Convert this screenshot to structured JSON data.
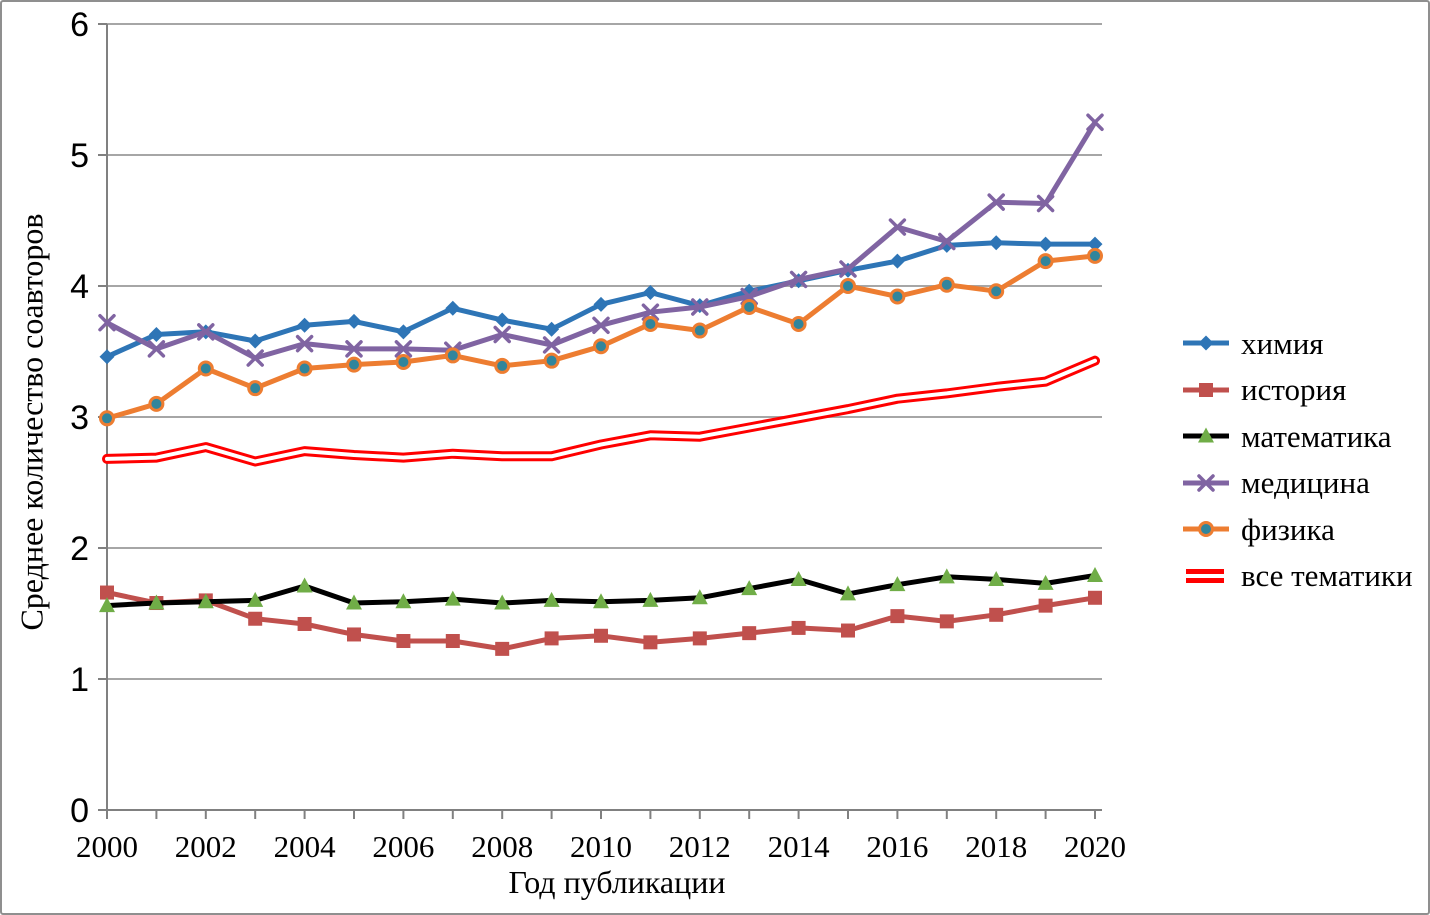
{
  "chart_data": {
    "type": "line",
    "title": "",
    "xlabel": "Год публикации",
    "ylabel": "Среднее количество соавторов",
    "x": [
      2000,
      2001,
      2002,
      2003,
      2004,
      2005,
      2006,
      2007,
      2008,
      2009,
      2010,
      2011,
      2012,
      2013,
      2014,
      2015,
      2016,
      2017,
      2018,
      2019,
      2020
    ],
    "x_tick_labels": [
      "2000",
      "2002",
      "2004",
      "2006",
      "2008",
      "2010",
      "2012",
      "2014",
      "2016",
      "2018",
      "2020"
    ],
    "y_ticks": [
      0,
      1,
      2,
      3,
      4,
      5,
      6
    ],
    "y_tick_labels": [
      "0",
      "1",
      "2",
      "3",
      "4",
      "5",
      "6"
    ],
    "xlim": [
      2000,
      2020
    ],
    "ylim": [
      0,
      6
    ],
    "grid": "horizontal",
    "grid_color": "#A6A6A6",
    "axis_color": "#808080",
    "legend_position": "right",
    "series": [
      {
        "id": "chemistry",
        "name": "химия",
        "color": "#2E75B6",
        "marker": "diamond",
        "values": [
          3.46,
          3.63,
          3.65,
          3.58,
          3.7,
          3.73,
          3.65,
          3.83,
          3.74,
          3.67,
          3.86,
          3.95,
          3.85,
          3.96,
          4.04,
          4.12,
          4.19,
          4.31,
          4.33,
          4.32,
          4.32
        ]
      },
      {
        "id": "history",
        "name": "история",
        "color": "#C0504D",
        "marker": "square",
        "values": [
          1.66,
          1.58,
          1.6,
          1.46,
          1.42,
          1.34,
          1.29,
          1.29,
          1.23,
          1.31,
          1.33,
          1.28,
          1.31,
          1.35,
          1.39,
          1.37,
          1.48,
          1.44,
          1.49,
          1.56,
          1.62
        ]
      },
      {
        "id": "mathematics",
        "name": "математика",
        "color": "#000000",
        "marker": "triangle",
        "marker_color": "#70AD47",
        "values": [
          1.56,
          1.58,
          1.59,
          1.6,
          1.71,
          1.58,
          1.59,
          1.61,
          1.58,
          1.6,
          1.59,
          1.6,
          1.62,
          1.69,
          1.76,
          1.65,
          1.72,
          1.78,
          1.76,
          1.73,
          1.79
        ]
      },
      {
        "id": "medicine",
        "name": "медицина",
        "color": "#8064A2",
        "marker": "x",
        "values": [
          3.72,
          3.52,
          3.65,
          3.45,
          3.56,
          3.52,
          3.52,
          3.51,
          3.63,
          3.55,
          3.7,
          3.8,
          3.84,
          3.92,
          4.05,
          4.13,
          4.45,
          4.34,
          4.64,
          4.63,
          5.25
        ]
      },
      {
        "id": "physics",
        "name": "физика",
        "color": "#ED7D31",
        "marker": "circle",
        "marker_color": "#31859C",
        "values": [
          2.99,
          3.1,
          3.37,
          3.22,
          3.37,
          3.4,
          3.42,
          3.47,
          3.39,
          3.43,
          3.54,
          3.71,
          3.66,
          3.84,
          3.71,
          4.0,
          3.92,
          4.01,
          3.96,
          4.19,
          4.23
        ]
      },
      {
        "id": "all-topics",
        "name": "все тематики",
        "color": "#FF0000",
        "marker": "none",
        "style": "double",
        "values": [
          2.68,
          2.69,
          2.77,
          2.66,
          2.74,
          2.71,
          2.69,
          2.72,
          2.7,
          2.7,
          2.79,
          2.86,
          2.85,
          2.92,
          2.99,
          3.06,
          3.14,
          3.18,
          3.23,
          3.27,
          3.43
        ]
      }
    ]
  }
}
